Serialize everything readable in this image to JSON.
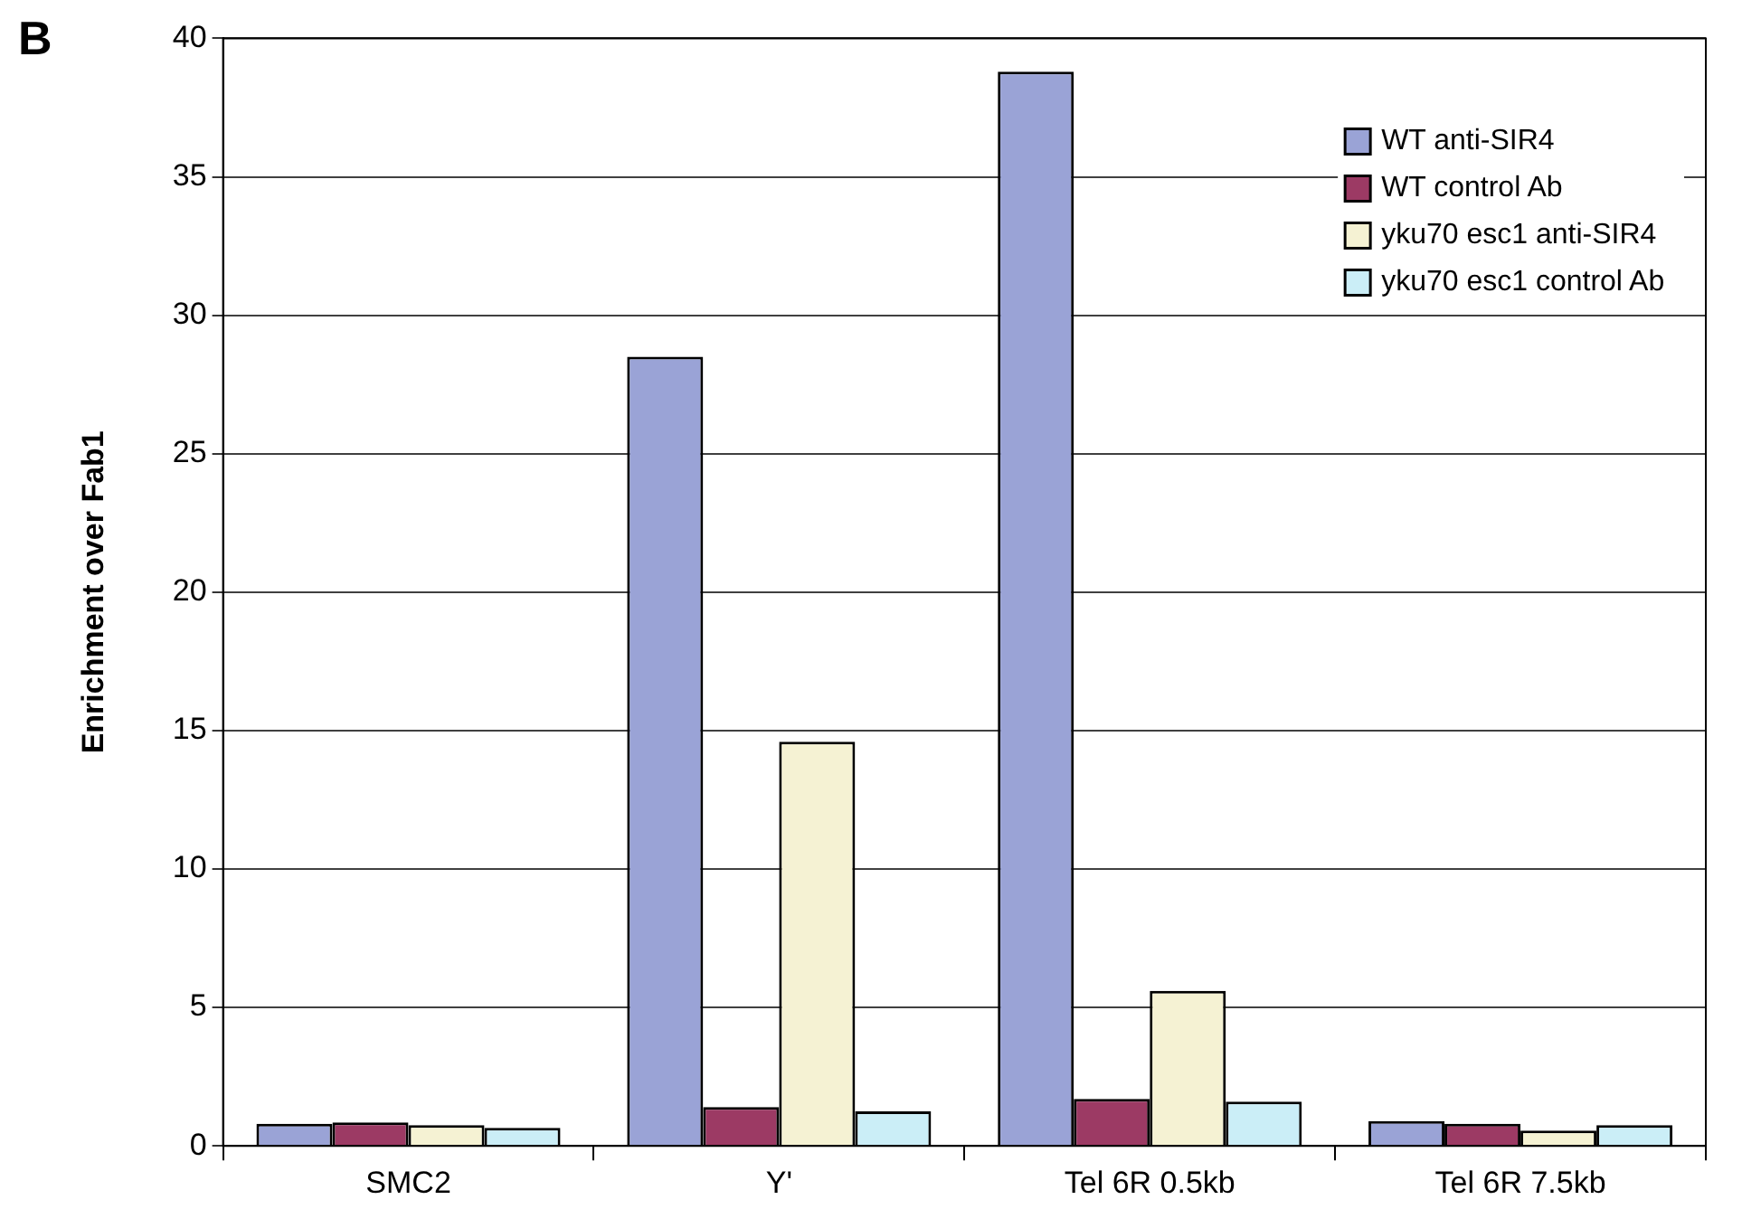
{
  "chart_data": {
    "type": "bar",
    "ylabel": "Enrichment over Fab1",
    "annotations": [
      "B"
    ],
    "categories": [
      "SMC2",
      "Y'",
      "Tel 6R 0.5kb",
      "Tel 6R 7.5kb"
    ],
    "series": [
      {
        "name": "WT anti-SIR4",
        "color": "#9aa3d6",
        "values": [
          0.8,
          28.5,
          38.8,
          0.9
        ]
      },
      {
        "name": "WT control Ab",
        "color": "#9c3a64",
        "values": [
          0.85,
          1.4,
          1.7,
          0.8
        ]
      },
      {
        "name": "yku70 esc1 anti-SIR4",
        "color": "#f5f2d3",
        "values": [
          0.75,
          14.6,
          5.6,
          0.55
        ]
      },
      {
        "name": "yku70 esc1 control Ab",
        "color": "#cbeef7",
        "values": [
          0.65,
          1.25,
          1.6,
          0.75
        ]
      }
    ],
    "ylim": [
      0,
      40
    ],
    "yticks": [
      0,
      5,
      10,
      15,
      20,
      25,
      30,
      35,
      40
    ],
    "grid": "y",
    "legend": "top right"
  }
}
